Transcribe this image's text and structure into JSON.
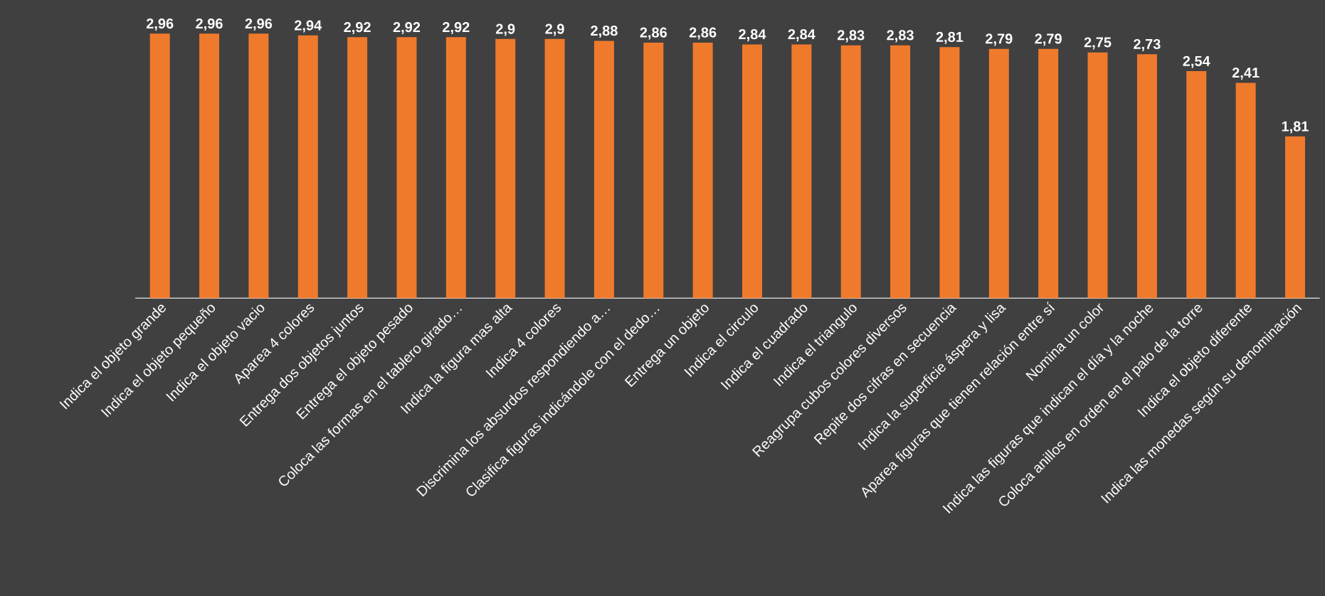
{
  "chart_data": {
    "type": "bar",
    "categories": [
      "Indica el objeto grande",
      "Indica el objeto pequeño",
      "Indica el objeto vacio",
      "Aparea 4 colores",
      "Entrega dos objetos juntos",
      "Entrega el objeto pesado",
      "Coloca las formas en el tablero girado…",
      "Indica la figura mas alta",
      "Indica 4 colores",
      "Discrimina los absurdos respondiendo a…",
      "Clasifica figuras indicándole con el dedo…",
      "Entrega un objeto",
      "Indica el circulo",
      "Indica el cuadrado",
      "Indica el triangulo",
      "Reagrupa cubos colores diversos",
      "Repite dos cifras en secuencia",
      "Indica la superficie áspera y lisa",
      "Aparea figuras que tienen relación entre sí",
      "Nomina un color",
      "Indica las figuras que indican el día y la noche",
      "Coloca anillos en orden en el palo de la torre",
      "Indica el objeto diferente",
      "Indica las monedas según su denominación"
    ],
    "values": [
      2.96,
      2.96,
      2.96,
      2.94,
      2.92,
      2.92,
      2.92,
      2.9,
      2.9,
      2.88,
      2.86,
      2.86,
      2.84,
      2.84,
      2.83,
      2.83,
      2.81,
      2.79,
      2.79,
      2.75,
      2.73,
      2.54,
      2.41,
      1.81
    ],
    "value_labels": [
      "2,96",
      "2,96",
      "2,96",
      "2,94",
      "2,92",
      "2,92",
      "2,92",
      "2,9",
      "2,9",
      "2,88",
      "2,86",
      "2,86",
      "2,84",
      "2,84",
      "2,83",
      "2,83",
      "2,81",
      "2,79",
      "2,79",
      "2,75",
      "2,73",
      "2,54",
      "2,41",
      "1,81"
    ],
    "color": "#f07a2c",
    "tick_labels": "x"
  }
}
